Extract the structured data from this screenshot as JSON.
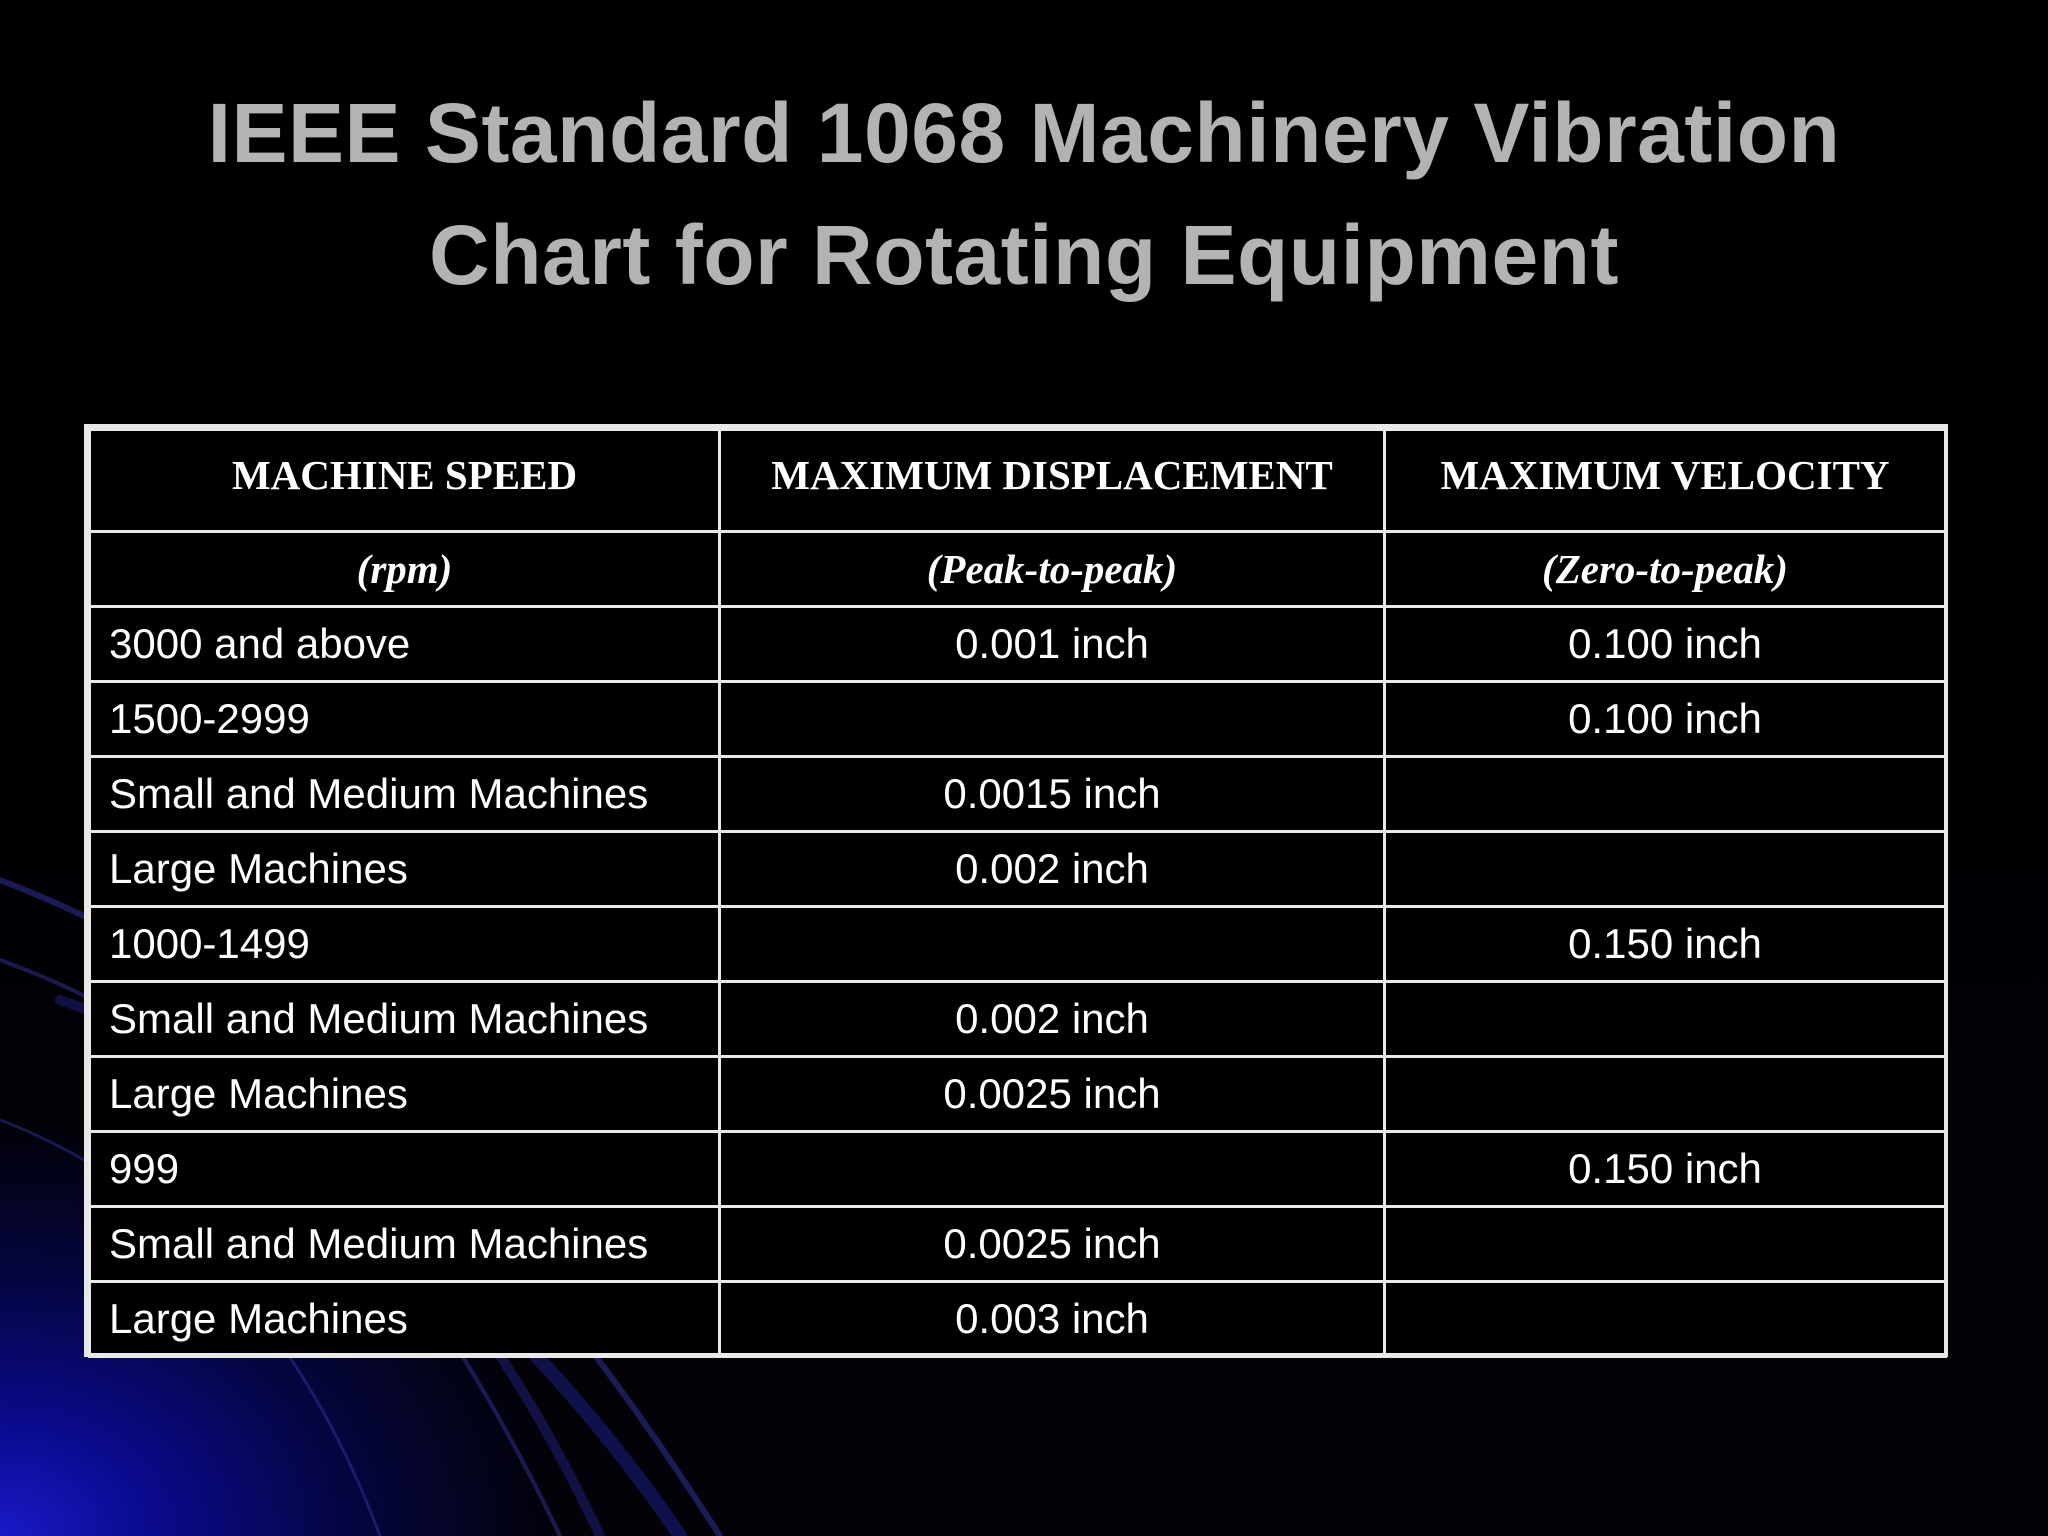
{
  "title": {
    "line1": "IEEE Standard 1068 Machinery Vibration",
    "line2": "Chart for Rotating Equipment"
  },
  "table": {
    "headers": [
      "MACHINE SPEED",
      "MAXIMUM DISPLACEMENT",
      "MAXIMUM VELOCITY"
    ],
    "subheaders": [
      "(rpm)",
      "(Peak-to-peak)",
      "(Zero-to-peak)"
    ],
    "rows": [
      [
        "3000 and above",
        "0.001 inch",
        "0.100 inch"
      ],
      [
        "1500-2999",
        "",
        "0.100 inch"
      ],
      [
        "Small and Medium Machines",
        "0.0015 inch",
        ""
      ],
      [
        "Large Machines",
        "0.002 inch",
        ""
      ],
      [
        "1000-1499",
        "",
        "0.150 inch"
      ],
      [
        "Small and Medium Machines",
        "0.002 inch",
        ""
      ],
      [
        "Large Machines",
        "0.0025 inch",
        ""
      ],
      [
        "999",
        "",
        "0.150 inch"
      ],
      [
        "Small and Medium Machines",
        "0.0025 inch",
        ""
      ],
      [
        "Large Machines",
        "0.003 inch",
        ""
      ]
    ]
  }
}
